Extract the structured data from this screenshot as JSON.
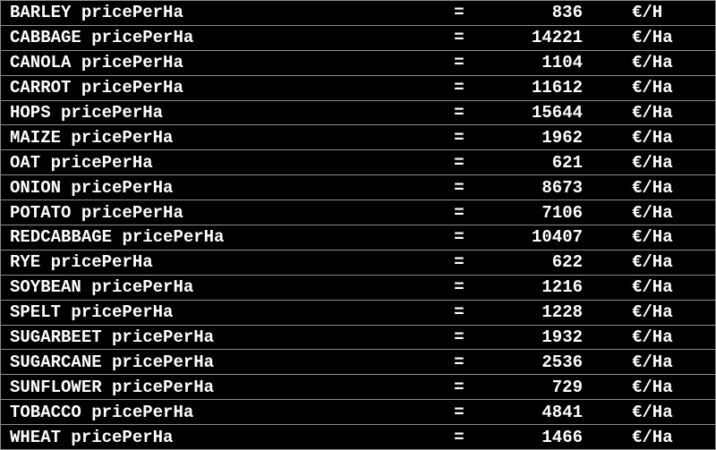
{
  "meta": {
    "background_color": "#000000",
    "border_color": "#8c8c8c",
    "text_color": "#ffffff"
  },
  "console_table": {
    "attribute_key": "pricePerHa",
    "rows": [
      {
        "crop": "BARLEY",
        "key": "pricePerHa",
        "eq": "=",
        "value": 836,
        "unit": "€/H"
      },
      {
        "crop": "CABBAGE",
        "key": "pricePerHa",
        "eq": "=",
        "value": 14221,
        "unit": "€/Ha"
      },
      {
        "crop": "CANOLA",
        "key": "pricePerHa",
        "eq": "=",
        "value": 1104,
        "unit": "€/Ha"
      },
      {
        "crop": "CARROT",
        "key": "pricePerHa",
        "eq": "=",
        "value": 11612,
        "unit": "€/Ha"
      },
      {
        "crop": "HOPS",
        "key": "pricePerHa",
        "eq": "=",
        "value": 15644,
        "unit": "€/Ha"
      },
      {
        "crop": "MAIZE",
        "key": "pricePerHa",
        "eq": "=",
        "value": 1962,
        "unit": "€/Ha"
      },
      {
        "crop": "OAT",
        "key": "pricePerHa",
        "eq": "=",
        "value": 621,
        "unit": "€/Ha"
      },
      {
        "crop": "ONION",
        "key": "pricePerHa",
        "eq": "=",
        "value": 8673,
        "unit": "€/Ha"
      },
      {
        "crop": "POTATO",
        "key": "pricePerHa",
        "eq": "=",
        "value": 7106,
        "unit": "€/Ha"
      },
      {
        "crop": "REDCABBAGE",
        "key": "pricePerHa",
        "eq": "=",
        "value": 10407,
        "unit": "€/Ha"
      },
      {
        "crop": "RYE",
        "key": "pricePerHa",
        "eq": "=",
        "value": 622,
        "unit": "€/Ha"
      },
      {
        "crop": "SOYBEAN",
        "key": "pricePerHa",
        "eq": "=",
        "value": 1216,
        "unit": "€/Ha"
      },
      {
        "crop": "SPELT",
        "key": "pricePerHa",
        "eq": "=",
        "value": 1228,
        "unit": "€/Ha"
      },
      {
        "crop": "SUGARBEET",
        "key": "pricePerHa",
        "eq": "=",
        "value": 1932,
        "unit": "€/Ha"
      },
      {
        "crop": "SUGARCANE",
        "key": "pricePerHa",
        "eq": "=",
        "value": 2536,
        "unit": "€/Ha"
      },
      {
        "crop": "SUNFLOWER",
        "key": "pricePerHa",
        "eq": "=",
        "value": 729,
        "unit": "€/Ha"
      },
      {
        "crop": "TOBACCO",
        "key": "pricePerHa",
        "eq": "=",
        "value": 4841,
        "unit": "€/Ha"
      },
      {
        "crop": "WHEAT",
        "key": "pricePerHa",
        "eq": "=",
        "value": 1466,
        "unit": "€/Ha"
      }
    ]
  }
}
